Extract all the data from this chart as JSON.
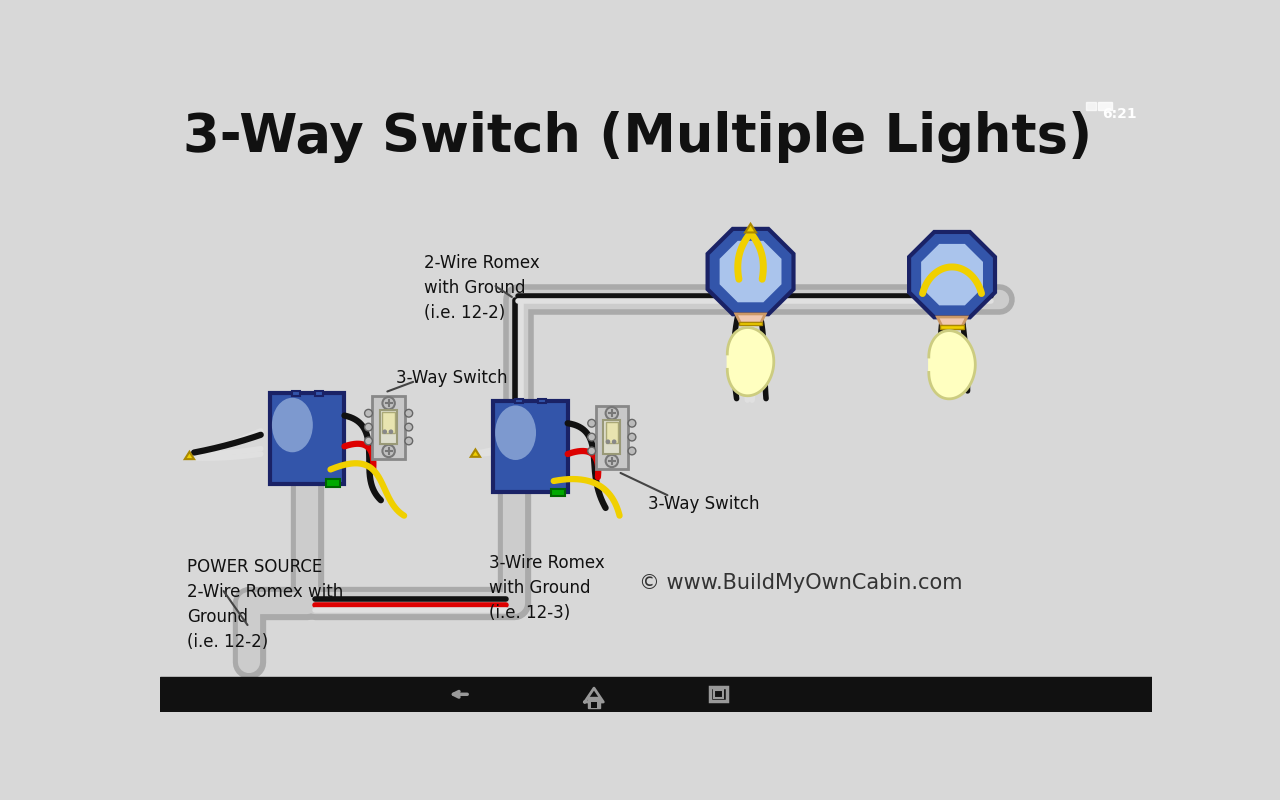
{
  "title": "3-Way Switch (Multiple Lights)",
  "bg_color": "#d8d8d8",
  "bottom_bar_color": "#111111",
  "title_fontsize": 38,
  "labels": {
    "power_source": "POWER SOURCE\n2-Wire Romex with\nGround\n(i.e. 12-2)",
    "romex_2wire": "2-Wire Romex\nwith Ground\n(i.e. 12-2)",
    "romex_3wire": "3-Wire Romex\nwith Ground\n(i.e. 12-3)",
    "switch1_label": "3-Way Switch",
    "switch2_label": "3-Way Switch",
    "copyright": "© www.BuildMyOwnCabin.com"
  },
  "colors": {
    "black_wire": "#111111",
    "white_wire": "#e0e0e0",
    "red_wire": "#dd0000",
    "yellow_wire": "#f0d000",
    "green_wire": "#00aa00",
    "conduit_outer": "#aaaaaa",
    "conduit_inner": "#cccccc",
    "box_fill": "#3355aa",
    "box_border": "#1a2266",
    "box_shine": "#b0c8e8",
    "oct_fill": "#3355aa",
    "oct_border": "#1a2266",
    "oct_shine": "#c0d8f8",
    "switch_body": "#c8c8c8",
    "switch_border": "#888888",
    "switch_toggle": "#e8e4b0",
    "bulb_fill": "#ffffc0",
    "bulb_outline": "#cccc80",
    "base_fill": "#f0c8b0",
    "base_outline": "#cc9966"
  }
}
